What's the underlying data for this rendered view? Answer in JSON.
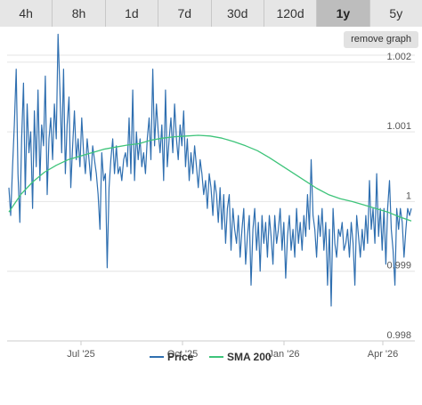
{
  "range_tabs": [
    "4h",
    "8h",
    "1d",
    "7d",
    "30d",
    "120d",
    "1y",
    "5y"
  ],
  "active_tab": "1y",
  "remove_graph_label": "remove graph",
  "chart_data": {
    "type": "line",
    "x_ticks": [
      "Jul '25",
      "Oct '25",
      "Jan '26",
      "Apr '26"
    ],
    "y_ticks": [
      "1.002",
      "1.001",
      "1",
      "0.999",
      "0.998"
    ],
    "ylim": [
      0.998,
      1.0021
    ],
    "grid": "horizontal",
    "legend_position": "bottom",
    "series": [
      {
        "name": "Price",
        "color": "#2f6fb0",
        "values": [
          1.0002,
          0.9998,
          1.0005,
          1.0011,
          1.0019,
          1.0004,
          0.9997,
          1.0009,
          1.0017,
          1.0001,
          1.0014,
          1.0007,
          1.001,
          0.9999,
          1.0013,
          1.0005,
          1.0016,
          1.0003,
          1.0011,
          1.0008,
          1.0018,
          1.0001,
          1.0009,
          1.0012,
          1.0006,
          1.0014,
          1.0009,
          1.0024,
          1.0016,
          1.0007,
          1.0019,
          1.0004,
          1.0011,
          1.0015,
          1.0002,
          1.0008,
          1.0013,
          1.0006,
          1.0009,
          1.0005,
          1.0012,
          1.0007,
          1.0004,
          1.0009,
          1.0006,
          1.0003,
          1.0008,
          1.0006,
          1.0004,
          1.0001,
          0.9996,
          1.0007,
          1.0003,
          1.0004,
          0.99905,
          1.0002,
          1.0006,
          1.0009,
          1.0004,
          1.0008,
          1.0004,
          1.0005,
          1.0003,
          1.0006,
          1.0007,
          1.0005,
          1.0012,
          1.0004,
          1.0016,
          1.0003,
          1.001,
          1.0006,
          1.0009,
          1.0005,
          1.0007,
          1.0004,
          1.0009,
          1.0012,
          1.0006,
          1.0019,
          1.0008,
          1.0014,
          1.001,
          1.0007,
          1.0011,
          1.0003,
          1.0016,
          1.0005,
          1.0009,
          1.0012,
          1.0007,
          1.0014,
          1.0009,
          1.0006,
          1.0011,
          1.0008,
          1.0013,
          1.0005,
          1.0009,
          1.0003,
          1.0007,
          1.0004,
          1.0008,
          1.0005,
          1.0002,
          1.0006,
          1.0004,
          1.0001,
          1.0003,
          0.9999,
          1.0004,
          1.0002,
          0.9998,
          1.0003,
          1.0001,
          0.9997,
          1.0002,
          0.9996,
          1.0001,
          0.9994,
          0.9999,
          1.0001,
          0.9993,
          0.9999,
          0.9996,
          0.9994,
          0.9998,
          0.9992,
          0.9996,
          0.9999,
          0.9991,
          0.9995,
          0.9998,
          0.9988,
          0.9996,
          0.9999,
          0.9993,
          0.9997,
          0.999,
          0.9998,
          0.9994,
          0.9997,
          0.9992,
          0.9998,
          0.9995,
          0.9991,
          0.9998,
          0.9994,
          0.9996,
          0.9999,
          0.9993,
          0.9997,
          0.9989,
          0.9995,
          0.9998,
          0.9993,
          0.9996,
          0.9992,
          0.9999,
          0.9994,
          0.9997,
          0.9993,
          0.9998,
          0.9995,
          1.0001,
          0.9996,
          1.0006,
          0.9998,
          0.9996,
          0.9992,
          0.9998,
          0.9995,
          0.9999,
          0.9993,
          0.9997,
          0.9988,
          0.9996,
          0.9985,
          0.9999,
          0.9994,
          0.9992,
          0.9996,
          0.9995,
          0.9997,
          0.9993,
          0.9994,
          0.9996,
          0.9992,
          0.9997,
          0.9994,
          0.9988,
          0.9998,
          0.9995,
          0.9992,
          0.9996,
          0.9993,
          0.9998,
          0.9994,
          1.0003,
          0.9996,
          0.9999,
          0.9994,
          1.0004,
          0.9995,
          0.9999,
          0.9993,
          0.9999,
          0.9991,
          0.9999,
          1.0003,
          0.9996,
          0.9993,
          0.9988,
          0.9999,
          0.9996,
          0.9999,
          0.9997,
          0.9992,
          0.9996,
          0.9999,
          0.9998,
          0.9999
        ]
      },
      {
        "name": "SMA 200",
        "color": "#3ec47a",
        "values": [
          0.99985,
          1.0001,
          1.00028,
          1.00042,
          1.00052,
          1.0006,
          1.00065,
          1.0007,
          1.00075,
          1.00078,
          1.00081,
          1.00083,
          1.00088,
          1.00091,
          1.00093,
          1.00094,
          1.00095,
          1.00094,
          1.00091,
          1.00086,
          1.0008,
          1.00073,
          1.00063,
          1.00052,
          1.00041,
          1.0003,
          1.00019,
          1.0001,
          1.00004,
          1.0,
          0.99995,
          0.9999,
          0.99985,
          0.99978,
          0.99972
        ]
      }
    ]
  }
}
